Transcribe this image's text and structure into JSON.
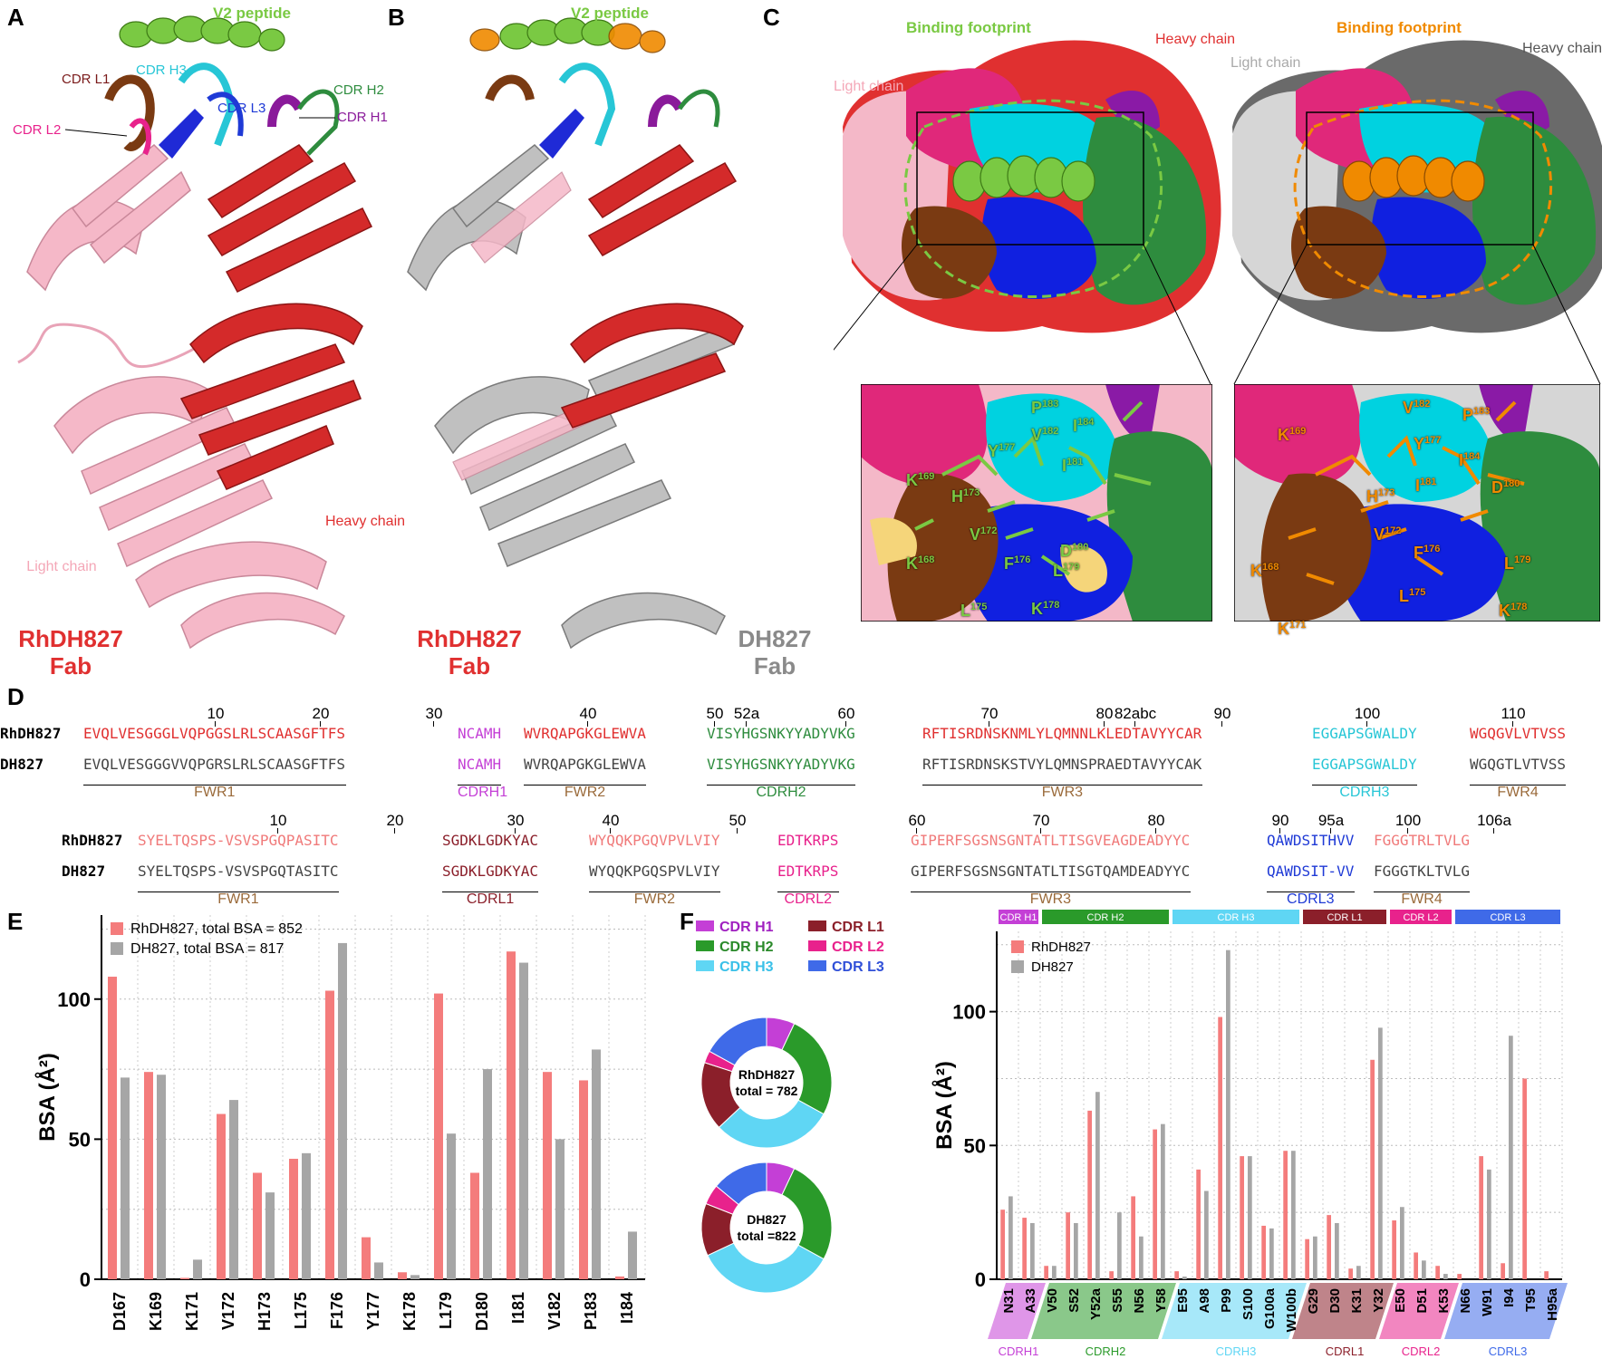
{
  "panels": {
    "a": "A",
    "b": "B",
    "c": "C",
    "d": "D",
    "e": "E",
    "f": "F"
  },
  "panelA": {
    "peptide": "V2 peptide",
    "cdrs": {
      "l1": "CDR L1",
      "l2": "CDR L2",
      "h3": "CDR H3",
      "l3": "CDR L3",
      "h2": "CDR H2",
      "h1": "CDR H1"
    },
    "heavy": "Heavy chain",
    "light": "Light chain",
    "fab_name": "RhDH827",
    "fab_word": "Fab"
  },
  "panelB": {
    "peptide": "V2 peptide",
    "fab1_name": "RhDH827",
    "fab1_word": "Fab",
    "fab2_name": "DH827",
    "fab2_word": "Fab"
  },
  "panelC": {
    "left": {
      "footprint": "Binding footprint",
      "heavy": "Heavy chain",
      "light": "Light chain"
    },
    "right": {
      "footprint": "Binding footprint",
      "heavy": "Heavy chain",
      "light": "Light chain"
    },
    "zoom_left": [
      "K169",
      "H173",
      "Y177",
      "P183",
      "V182",
      "I184",
      "I181",
      "V172",
      "F176",
      "D180",
      "L179",
      "K168",
      "L175",
      "K178"
    ],
    "zoom_right": [
      "K169",
      "H173",
      "Y177",
      "V182",
      "P183",
      "I184",
      "I181",
      "D180",
      "V172",
      "F176",
      "L179",
      "K168",
      "L175",
      "K171",
      "K178"
    ]
  },
  "panelD": {
    "heavy_ticks": [
      "10",
      "20",
      "30",
      "40",
      "50",
      "52a",
      "60",
      "70",
      "80",
      "82abc",
      "90",
      "100",
      "110"
    ],
    "heavy_rows": [
      {
        "name": "RhDH827",
        "segs": [
          "EVQLVESGGGLVQPGGSLRLSCAASGFTFS",
          "NCAMH",
          "WVRQAPGKGLEWVA",
          "VISYHGSNKYYADYVKG",
          "RFTISRDNSKNMLYLQMNNLKLEDTAVYYCAR",
          "EGGAPSGWALDY",
          "WGQGVLVTVSS"
        ]
      },
      {
        "name": "DH827",
        "segs": [
          "EVQLVESGGGVVQPGRSLRLSCAASGFTFS",
          "NCAMH",
          "WVRQAPGKGLEWVA",
          "VISYHGSNKYYADYVKG",
          "RFTISRDNSKSTVYLQMNSPRAEDTAVYYCAK",
          "EGGAPSGWALDY",
          "WGQGTLVTVSS"
        ]
      }
    ],
    "heavy_regions": [
      "FWR1",
      "CDRH1",
      "FWR2",
      "CDRH2",
      "FWR3",
      "CDRH3",
      "FWR4"
    ],
    "light_ticks": [
      "10",
      "20",
      "30",
      "40",
      "50",
      "60",
      "70",
      "80",
      "90",
      "95a",
      "100",
      "106a"
    ],
    "light_rows": [
      {
        "name": "RhDH827",
        "segs": [
          "SYELTQSPS-VSVSPGQPASITC",
          "SGDKLGDKYAC",
          "WYQQKPGQVPVLVIY",
          "EDTKRPS",
          "GIPERFSGSNSGNTATLTISGVEAGDEADYYC",
          "QAWDSITHVV",
          "FGGGTRLTVLG"
        ]
      },
      {
        "name": "DH827",
        "segs": [
          "SYELTQSPS-VSVSPGQTASITC",
          "SGDKLGDKYAC",
          "WYQQKPGQSPVLVIY",
          "EDTKRPS",
          "GIPERFSGSNSGNTATLTISGTQAMDEADYYC",
          "QAWDSIT-VV",
          "FGGGTKLTVLG"
        ]
      }
    ],
    "light_regions": [
      "FWR1",
      "CDRL1",
      "FWR2",
      "CDRL2",
      "FWR3",
      "CDRL3",
      "FWR4"
    ]
  },
  "colors": {
    "red": "#e03030",
    "pink": "#f4a7a7",
    "gray": "#a6a6a6",
    "green": "#7ac943",
    "orange": "#f08a00"
  },
  "chart_data": [
    {
      "type": "bar",
      "title": "",
      "xlabel": "",
      "ylabel": "BSA (Å²)",
      "ylim": [
        0,
        130
      ],
      "yticks": [
        "0",
        "50",
        "100"
      ],
      "categories": [
        "D167",
        "K169",
        "K171",
        "V172",
        "H173",
        "L175",
        "F176",
        "Y177",
        "K178",
        "L179",
        "D180",
        "I181",
        "V182",
        "P183",
        "I184"
      ],
      "series": [
        {
          "name": "RhDH827, total BSA = 852",
          "values": [
            108,
            74,
            0.5,
            59,
            38,
            43,
            103,
            15,
            2.5,
            102,
            38,
            117,
            74,
            71,
            1
          ]
        },
        {
          "name": "DH827, total BSA = 817",
          "values": [
            72,
            73,
            7,
            64,
            31,
            45,
            120,
            6,
            1.5,
            52,
            75,
            113,
            50,
            82,
            17
          ]
        }
      ],
      "legend": "top-left"
    },
    {
      "type": "pie",
      "legend_entries": [
        "CDR H1",
        "CDR L1",
        "CDR H2",
        "CDR L2",
        "CDR H3",
        "CDR L3"
      ],
      "donuts": [
        {
          "label_name": "RhDH827",
          "label_total": "total = 782",
          "slices": [
            {
              "name": "CDR H1",
              "value": 7
            },
            {
              "name": "CDR H2",
              "value": 26
            },
            {
              "name": "CDR H3",
              "value": 30
            },
            {
              "name": "CDR L1",
              "value": 17
            },
            {
              "name": "CDR L2",
              "value": 3
            },
            {
              "name": "CDR L3",
              "value": 17
            }
          ]
        },
        {
          "label_name": "DH827",
          "label_total": "total =822",
          "slices": [
            {
              "name": "CDR H1",
              "value": 7
            },
            {
              "name": "CDR H2",
              "value": 26
            },
            {
              "name": "CDR H3",
              "value": 35
            },
            {
              "name": "CDR L1",
              "value": 13
            },
            {
              "name": "CDR L2",
              "value": 5
            },
            {
              "name": "CDR L3",
              "value": 14
            }
          ]
        }
      ]
    },
    {
      "type": "bar",
      "title": "",
      "xlabel": "",
      "ylabel": "BSA (Å²)",
      "ylim": [
        0,
        130
      ],
      "yticks": [
        "0",
        "50",
        "100"
      ],
      "categories": [
        "N31",
        "A33",
        "V50",
        "S52",
        "Y52a",
        "S55",
        "N56",
        "Y58",
        "E95",
        "A98",
        "P99",
        "S100",
        "G100a",
        "W100b",
        "G29",
        "D30",
        "K31",
        "Y32",
        "E50",
        "D51",
        "K53",
        "N66",
        "W91",
        "I94",
        "T95",
        "H95a"
      ],
      "groups": [
        {
          "name": "CDRH1",
          "header": "CDR H1",
          "count": 2,
          "color": "#c43fd6"
        },
        {
          "name": "CDRH2",
          "header": "CDR H2",
          "count": 6,
          "color": "#2a9a2a"
        },
        {
          "name": "CDRH3",
          "header": "CDR H3",
          "count": 6,
          "color": "#5fd6f4"
        },
        {
          "name": "CDRL1",
          "header": "CDR L1",
          "count": 4,
          "color": "#8b1f2a"
        },
        {
          "name": "CDRL2",
          "header": "CDR L2",
          "count": 3,
          "color": "#e8228c"
        },
        {
          "name": "CDRL3",
          "header": "CDR L3",
          "count": 5,
          "color": "#3f6ae8"
        }
      ],
      "series": [
        {
          "name": "RhDH827",
          "values": [
            26,
            23,
            5,
            25,
            63,
            3,
            31,
            56,
            3,
            41,
            98,
            46,
            20,
            48,
            15,
            24,
            4,
            82,
            22,
            10,
            5,
            2,
            46,
            6,
            75,
            3
          ]
        },
        {
          "name": "DH827",
          "values": [
            31,
            21,
            5,
            21,
            70,
            25,
            16,
            58,
            1,
            33,
            123,
            46,
            19,
            48,
            16,
            21,
            5,
            94,
            27,
            7,
            2,
            0,
            41,
            91,
            0,
            0
          ]
        }
      ],
      "legend": "top-left"
    }
  ]
}
